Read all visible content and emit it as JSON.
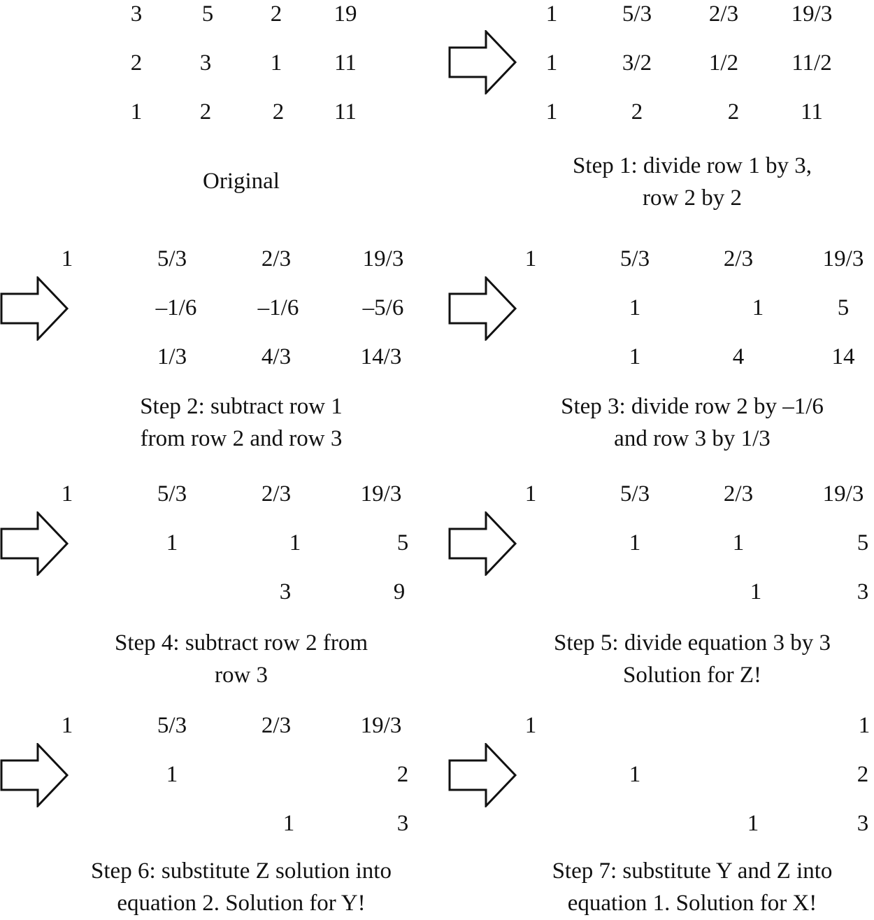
{
  "original": {
    "caption": "Original",
    "rows": [
      [
        "3",
        "5",
        "2",
        "19"
      ],
      [
        "2",
        "3",
        "1",
        "11"
      ],
      [
        "1",
        "2",
        "2",
        "11"
      ]
    ]
  },
  "step1": {
    "caption": [
      "Step 1: divide row 1 by 3,",
      "row 2 by 2"
    ],
    "rows": [
      [
        "1",
        "5/3",
        "2/3",
        "19/3"
      ],
      [
        "1",
        "3/2",
        "1/2",
        "11/2"
      ],
      [
        "1",
        "2",
        "2",
        "11"
      ]
    ]
  },
  "step2": {
    "caption": [
      "Step 2: subtract row 1",
      "from row 2 and row 3"
    ],
    "rows": [
      [
        "1",
        "5/3",
        "2/3",
        "19/3"
      ],
      [
        "",
        "–1/6",
        "–1/6",
        "–5/6"
      ],
      [
        "",
        "1/3",
        "4/3",
        "14/3"
      ]
    ]
  },
  "step3": {
    "caption": [
      "Step 3: divide row 2 by –1/6",
      "and row 3 by 1/3"
    ],
    "rows": [
      [
        "1",
        "5/3",
        "2/3",
        "19/3"
      ],
      [
        "",
        "1",
        "1",
        "5"
      ],
      [
        "",
        "1",
        "4",
        "14"
      ]
    ]
  },
  "step4": {
    "caption": [
      "Step 4: subtract row 2 from",
      "row 3"
    ],
    "rows": [
      [
        "1",
        "5/3",
        "2/3",
        "19/3"
      ],
      [
        "",
        "1",
        "1",
        "5"
      ],
      [
        "",
        "",
        "3",
        "9"
      ]
    ]
  },
  "step5": {
    "caption": [
      "Step 5: divide equation 3 by 3",
      "Solution for Z!"
    ],
    "rows": [
      [
        "1",
        "5/3",
        "2/3",
        "19/3"
      ],
      [
        "",
        "1",
        "1",
        "5"
      ],
      [
        "",
        "",
        "1",
        "3"
      ]
    ]
  },
  "step6": {
    "caption": [
      "Step 6: substitute Z solution into",
      "equation 2. Solution for Y!"
    ],
    "rows": [
      [
        "1",
        "5/3",
        "2/3",
        "19/3"
      ],
      [
        "",
        "1",
        "",
        "2"
      ],
      [
        "",
        "",
        "1",
        "3"
      ]
    ]
  },
  "step7": {
    "caption": [
      "Step 7: substitute Y and Z into",
      "equation 1.  Solution for X!"
    ],
    "rows": [
      [
        "1",
        "",
        "",
        "1"
      ],
      [
        "",
        "1",
        "",
        "2"
      ],
      [
        "",
        "",
        "1",
        "3"
      ]
    ]
  },
  "arrow_icon": "right-arrow-outline-icon",
  "colors": {
    "ink": "#111111",
    "background": "#ffffff"
  }
}
